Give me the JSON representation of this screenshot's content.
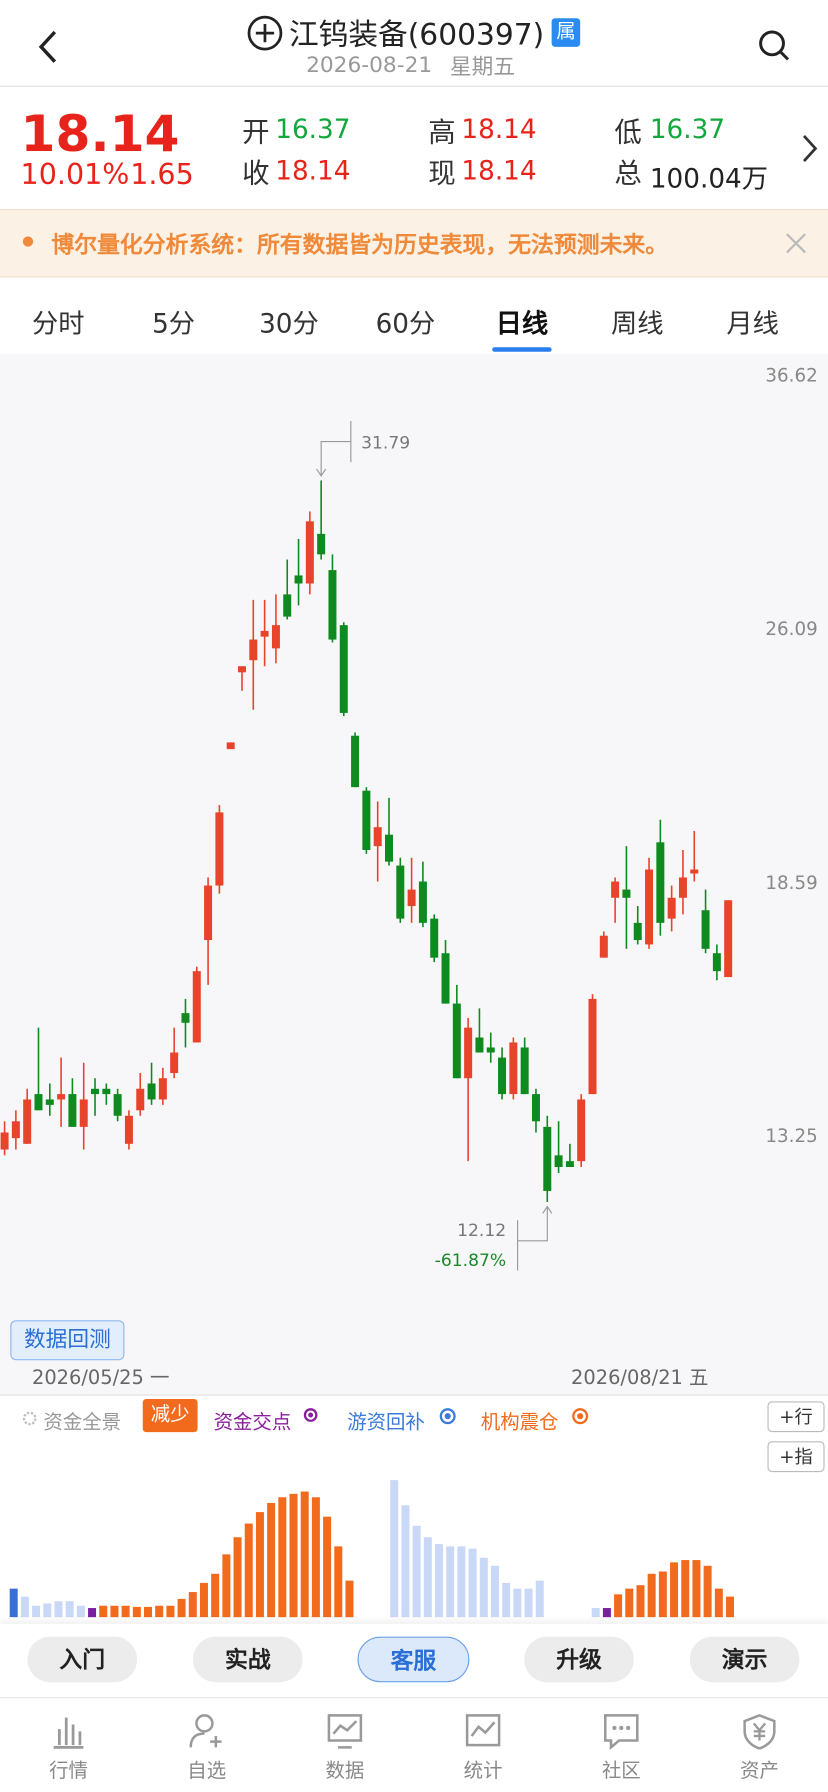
{
  "header": {
    "title": "江钨装备(600397)",
    "badge": "属",
    "date": "2026-08-21",
    "weekday": "星期五"
  },
  "quote": {
    "price": "18.14",
    "change_pct": "10.01%",
    "change": "1.65",
    "stats": [
      {
        "label": "开",
        "value": "16.37"
      },
      {
        "label": "收",
        "value": "18.14"
      },
      {
        "label": "高",
        "value": "18.14"
      },
      {
        "label": "现",
        "value": "18.14"
      },
      {
        "label": "低",
        "value": "16.37"
      },
      {
        "label": "总",
        "value": "100.04万"
      }
    ]
  },
  "notice": "博尔量化分析系统：所有数据皆为历史表现，无法预测未来。",
  "tabs": [
    "分时",
    "5分",
    "30分",
    "60分",
    "日线",
    "周线",
    "月线"
  ],
  "backtest_button": "数据回测",
  "chart_data": [
    {
      "type": "candlestick",
      "log_scale": true,
      "up_color": "#e8432b",
      "down_color": "#0f8a1e",
      "ylim": [
        11.0,
        36.62
      ],
      "yticks": [
        13.25,
        18.59,
        26.09,
        36.62
      ],
      "x_start_label": "2026/05/25 一",
      "x_end_label": "2026/08/21 五",
      "high_label": "31.79",
      "low_label": "12.12",
      "low_change": "-61.87%",
      "open": [
        13.0,
        13.2,
        13.1,
        14.0,
        13.9,
        13.9,
        14.0,
        13.4,
        14.1,
        14.1,
        14.0,
        13.1,
        13.7,
        14.2,
        13.9,
        14.4,
        15.6,
        15.0,
        17.2,
        18.5,
        22.2,
        24.6,
        25.0,
        25.8,
        25.4,
        27.3,
        28.0,
        27.7,
        29.6,
        28.2,
        26.2,
        22.6,
        21.0,
        19.5,
        19.8,
        19.0,
        18.0,
        18.6,
        17.7,
        16.9,
        15.8,
        14.3,
        15.1,
        14.9,
        14.7,
        14.0,
        14.9,
        14.0,
        13.4,
        12.9,
        12.8,
        12.8,
        14.0,
        16.8,
        18.2,
        18.4,
        17.6,
        17.1,
        19.6,
        17.7,
        18.2,
        18.8,
        17.9,
        16.9,
        16.37
      ],
      "high": [
        13.5,
        13.7,
        14.1,
        15.3,
        14.2,
        14.7,
        14.3,
        14.6,
        14.3,
        14.2,
        14.1,
        13.7,
        14.4,
        14.6,
        14.5,
        15.3,
        15.9,
        16.6,
        18.7,
        20.6,
        22.4,
        24.8,
        27.1,
        27.1,
        27.3,
        28.6,
        29.4,
        30.5,
        31.79,
        28.8,
        26.3,
        22.7,
        21.1,
        20.7,
        20.8,
        19.2,
        19.2,
        19.1,
        17.8,
        17.2,
        16.2,
        15.5,
        15.7,
        15.2,
        14.9,
        15.1,
        15.1,
        14.1,
        13.6,
        13.5,
        13.1,
        14.0,
        16.0,
        17.4,
        18.7,
        19.5,
        18.0,
        19.2,
        20.2,
        18.5,
        19.4,
        19.9,
        18.4,
        17.1,
        18.14
      ],
      "low": [
        12.9,
        13.0,
        13.1,
        13.7,
        13.6,
        13.4,
        13.4,
        13.0,
        13.6,
        13.8,
        13.5,
        13.0,
        13.6,
        13.8,
        13.8,
        14.3,
        14.9,
        15.0,
        16.2,
        18.3,
        22.2,
        24.0,
        23.4,
        24.8,
        24.9,
        26.4,
        26.9,
        27.3,
        28.6,
        25.6,
        23.2,
        21.1,
        19.3,
        18.6,
        19.0,
        17.6,
        17.6,
        17.5,
        16.7,
        15.8,
        14.3,
        12.8,
        14.8,
        14.6,
        13.9,
        13.9,
        14.0,
        13.3,
        12.12,
        12.6,
        12.7,
        12.7,
        14.0,
        16.8,
        17.6,
        17.0,
        17.1,
        17.0,
        17.3,
        17.4,
        17.8,
        18.6,
        16.9,
        16.3,
        16.37
      ],
      "close": [
        13.3,
        13.5,
        13.9,
        13.7,
        13.8,
        14.0,
        13.4,
        13.9,
        14.0,
        14.0,
        13.6,
        13.6,
        14.1,
        13.9,
        14.3,
        14.8,
        15.4,
        16.5,
        18.5,
        20.4,
        22.4,
        24.8,
        25.7,
        26.0,
        26.2,
        26.5,
        27.7,
        30.1,
        28.8,
        25.7,
        23.3,
        21.1,
        19.4,
        20.0,
        19.1,
        17.7,
        18.4,
        17.6,
        16.8,
        15.8,
        14.3,
        15.3,
        14.8,
        14.8,
        14.0,
        15.0,
        14.0,
        13.5,
        12.3,
        12.7,
        12.7,
        13.9,
        15.9,
        17.3,
        18.6,
        18.2,
        17.2,
        18.9,
        17.6,
        18.2,
        18.7,
        18.9,
        17.0,
        16.5,
        18.14
      ]
    },
    {
      "type": "bar",
      "ylim": [
        0,
        125
      ],
      "legend": [
        "资金全景",
        "减少",
        "资金交点",
        "游资回补",
        "机构震仓"
      ],
      "buttons": [
        "+行",
        "+指"
      ],
      "values": [
        25,
        18,
        10,
        12,
        14,
        14,
        10,
        8,
        10,
        10,
        10,
        9,
        9,
        10,
        10,
        16,
        22,
        30,
        38,
        55,
        70,
        82,
        92,
        100,
        105,
        108,
        110,
        105,
        88,
        62,
        32,
        null,
        null,
        null,
        120,
        98,
        80,
        70,
        64,
        62,
        62,
        60,
        52,
        45,
        30,
        25,
        25,
        32,
        null,
        null,
        null,
        null,
        8,
        8,
        20,
        25,
        28,
        38,
        40,
        48,
        50,
        50,
        45,
        25,
        18
      ],
      "colors": [
        "#3a6fd8",
        "#c9d8f6",
        "#c9d8f6",
        "#c9d8f6",
        "#c9d8f6",
        "#c9d8f6",
        "#c9d8f6",
        "#7b1fa2",
        "#f26a1b",
        "#f26a1b",
        "#f26a1b",
        "#f26a1b",
        "#f26a1b",
        "#f26a1b",
        "#f26a1b",
        "#f26a1b",
        "#f26a1b",
        "#f26a1b",
        "#f26a1b",
        "#f26a1b",
        "#f26a1b",
        "#f26a1b",
        "#f26a1b",
        "#f26a1b",
        "#f26a1b",
        "#f26a1b",
        "#f26a1b",
        "#f26a1b",
        "#f26a1b",
        "#f26a1b",
        "#f26a1b",
        null,
        null,
        null,
        "#c9d8f6",
        "#c9d8f6",
        "#c9d8f6",
        "#c9d8f6",
        "#c9d8f6",
        "#c9d8f6",
        "#c9d8f6",
        "#c9d8f6",
        "#c9d8f6",
        "#c9d8f6",
        "#c9d8f6",
        "#c9d8f6",
        "#c9d8f6",
        "#c9d8f6",
        null,
        null,
        null,
        null,
        "#c9d8f6",
        "#7b1fa2",
        "#f26a1b",
        "#f26a1b",
        "#f26a1b",
        "#f26a1b",
        "#f26a1b",
        "#f26a1b",
        "#f26a1b",
        "#f26a1b",
        "#f26a1b",
        "#f26a1b",
        "#f26a1b"
      ]
    }
  ],
  "action_buttons": [
    "入门",
    "实战",
    "客服",
    "升级",
    "演示"
  ],
  "nav": [
    "行情",
    "自选",
    "数据",
    "统计",
    "社区",
    "资产"
  ]
}
